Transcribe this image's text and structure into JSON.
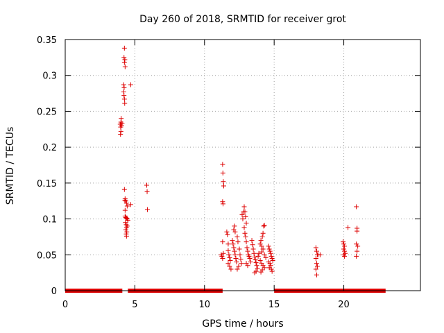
{
  "chart_data": {
    "type": "scatter",
    "title": "Day 260 of 2018, SRMTID for receiver grot",
    "xlabel": "GPS time / hours",
    "ylabel": "SRMTID / TECUs",
    "xlim": [
      0,
      25.5
    ],
    "ylim": [
      0,
      0.35
    ],
    "xticks": [
      0,
      5,
      10,
      15,
      20
    ],
    "yticks": [
      0,
      0.05,
      0.1,
      0.15,
      0.2,
      0.25,
      0.3,
      0.35
    ],
    "ytick_labels": [
      "0",
      "0.05",
      "0.1",
      "0.15",
      "0.2",
      "0.25",
      "0.3",
      "0.35"
    ],
    "grid": true,
    "marker": "plus",
    "color": "#dd0000",
    "zero_baseline_segments": [
      [
        0.0,
        4.1
      ],
      [
        4.5,
        11.3
      ],
      [
        15.0,
        23.0
      ]
    ],
    "points": [
      [
        3.95,
        0.232
      ],
      [
        3.98,
        0.228
      ],
      [
        4.0,
        0.235
      ],
      [
        4.02,
        0.24
      ],
      [
        4.0,
        0.222
      ],
      [
        4.05,
        0.23
      ],
      [
        4.08,
        0.233
      ],
      [
        3.97,
        0.218
      ],
      [
        4.25,
        0.338
      ],
      [
        4.22,
        0.325
      ],
      [
        4.28,
        0.322
      ],
      [
        4.25,
        0.318
      ],
      [
        4.3,
        0.312
      ],
      [
        4.2,
        0.287
      ],
      [
        4.23,
        0.283
      ],
      [
        4.2,
        0.277
      ],
      [
        4.22,
        0.272
      ],
      [
        4.25,
        0.267
      ],
      [
        4.27,
        0.261
      ],
      [
        4.7,
        0.287
      ],
      [
        4.25,
        0.141
      ],
      [
        4.3,
        0.128
      ],
      [
        4.28,
        0.126
      ],
      [
        4.35,
        0.125
      ],
      [
        4.4,
        0.122
      ],
      [
        4.45,
        0.118
      ],
      [
        4.7,
        0.12
      ],
      [
        4.3,
        0.112
      ],
      [
        4.3,
        0.104
      ],
      [
        4.35,
        0.102
      ],
      [
        4.4,
        0.101
      ],
      [
        4.45,
        0.1
      ],
      [
        4.5,
        0.098
      ],
      [
        4.32,
        0.095
      ],
      [
        4.38,
        0.092
      ],
      [
        4.45,
        0.09
      ],
      [
        4.4,
        0.088
      ],
      [
        4.35,
        0.085
      ],
      [
        4.42,
        0.082
      ],
      [
        4.38,
        0.079
      ],
      [
        4.4,
        0.076
      ],
      [
        5.85,
        0.147
      ],
      [
        5.88,
        0.138
      ],
      [
        5.9,
        0.113
      ],
      [
        11.3,
        0.176
      ],
      [
        11.32,
        0.164
      ],
      [
        11.35,
        0.152
      ],
      [
        11.38,
        0.146
      ],
      [
        11.3,
        0.124
      ],
      [
        11.33,
        0.121
      ],
      [
        11.3,
        0.068
      ],
      [
        11.2,
        0.05
      ],
      [
        11.25,
        0.048
      ],
      [
        11.3,
        0.045
      ],
      [
        11.35,
        0.052
      ],
      [
        11.6,
        0.082
      ],
      [
        11.65,
        0.078
      ],
      [
        11.7,
        0.065
      ],
      [
        11.7,
        0.056
      ],
      [
        11.75,
        0.05
      ],
      [
        11.8,
        0.046
      ],
      [
        11.85,
        0.042
      ],
      [
        11.7,
        0.038
      ],
      [
        11.8,
        0.034
      ],
      [
        11.9,
        0.03
      ],
      [
        12.0,
        0.07
      ],
      [
        12.05,
        0.065
      ],
      [
        12.1,
        0.06
      ],
      [
        12.15,
        0.055
      ],
      [
        12.2,
        0.05
      ],
      [
        12.25,
        0.045
      ],
      [
        12.3,
        0.04
      ],
      [
        12.1,
        0.085
      ],
      [
        12.15,
        0.09
      ],
      [
        12.2,
        0.082
      ],
      [
        12.35,
        0.075
      ],
      [
        12.4,
        0.068
      ],
      [
        12.5,
        0.058
      ],
      [
        12.55,
        0.05
      ],
      [
        12.6,
        0.044
      ],
      [
        12.65,
        0.038
      ],
      [
        12.45,
        0.034
      ],
      [
        12.35,
        0.03
      ],
      [
        12.7,
        0.106
      ],
      [
        12.75,
        0.1
      ],
      [
        12.8,
        0.11
      ],
      [
        12.85,
        0.117
      ],
      [
        12.9,
        0.11
      ],
      [
        12.95,
        0.103
      ],
      [
        13.0,
        0.094
      ],
      [
        12.85,
        0.088
      ],
      [
        12.9,
        0.08
      ],
      [
        12.95,
        0.075
      ],
      [
        13.0,
        0.068
      ],
      [
        13.05,
        0.06
      ],
      [
        13.1,
        0.055
      ],
      [
        13.15,
        0.05
      ],
      [
        13.2,
        0.048
      ],
      [
        13.25,
        0.045
      ],
      [
        13.3,
        0.04
      ],
      [
        13.0,
        0.038
      ],
      [
        13.1,
        0.035
      ],
      [
        13.4,
        0.07
      ],
      [
        13.45,
        0.064
      ],
      [
        13.5,
        0.058
      ],
      [
        13.55,
        0.052
      ],
      [
        13.6,
        0.047
      ],
      [
        13.65,
        0.043
      ],
      [
        13.7,
        0.039
      ],
      [
        13.75,
        0.035
      ],
      [
        13.8,
        0.031
      ],
      [
        13.7,
        0.027
      ],
      [
        13.6,
        0.025
      ],
      [
        13.85,
        0.048
      ],
      [
        13.9,
        0.052
      ],
      [
        14.0,
        0.065
      ],
      [
        14.05,
        0.07
      ],
      [
        14.1,
        0.062
      ],
      [
        14.15,
        0.075
      ],
      [
        14.2,
        0.08
      ],
      [
        14.25,
        0.09
      ],
      [
        14.3,
        0.091
      ],
      [
        14.2,
        0.058
      ],
      [
        14.1,
        0.054
      ],
      [
        14.3,
        0.05
      ],
      [
        14.4,
        0.046
      ],
      [
        14.0,
        0.042
      ],
      [
        14.1,
        0.038
      ],
      [
        14.2,
        0.035
      ],
      [
        14.3,
        0.032
      ],
      [
        14.15,
        0.029
      ],
      [
        14.05,
        0.026
      ],
      [
        14.6,
        0.062
      ],
      [
        14.65,
        0.058
      ],
      [
        14.7,
        0.055
      ],
      [
        14.75,
        0.052
      ],
      [
        14.8,
        0.048
      ],
      [
        14.85,
        0.045
      ],
      [
        14.9,
        0.042
      ],
      [
        14.7,
        0.038
      ],
      [
        14.75,
        0.035
      ],
      [
        14.8,
        0.03
      ],
      [
        14.85,
        0.027
      ],
      [
        14.6,
        0.04
      ],
      [
        14.65,
        0.032
      ],
      [
        18.0,
        0.06
      ],
      [
        18.05,
        0.055
      ],
      [
        18.1,
        0.05
      ],
      [
        18.15,
        0.05
      ],
      [
        18.0,
        0.045
      ],
      [
        18.05,
        0.038
      ],
      [
        18.1,
        0.034
      ],
      [
        18.0,
        0.03
      ],
      [
        18.05,
        0.022
      ],
      [
        18.3,
        0.05
      ],
      [
        19.95,
        0.068
      ],
      [
        20.0,
        0.065
      ],
      [
        20.05,
        0.062
      ],
      [
        20.0,
        0.058
      ],
      [
        20.05,
        0.055
      ],
      [
        20.1,
        0.052
      ],
      [
        20.0,
        0.05
      ],
      [
        20.05,
        0.048
      ],
      [
        20.3,
        0.088
      ],
      [
        20.9,
        0.117
      ],
      [
        20.95,
        0.087
      ],
      [
        20.95,
        0.083
      ],
      [
        20.9,
        0.065
      ],
      [
        21.0,
        0.062
      ],
      [
        20.95,
        0.055
      ],
      [
        20.9,
        0.048
      ]
    ]
  }
}
